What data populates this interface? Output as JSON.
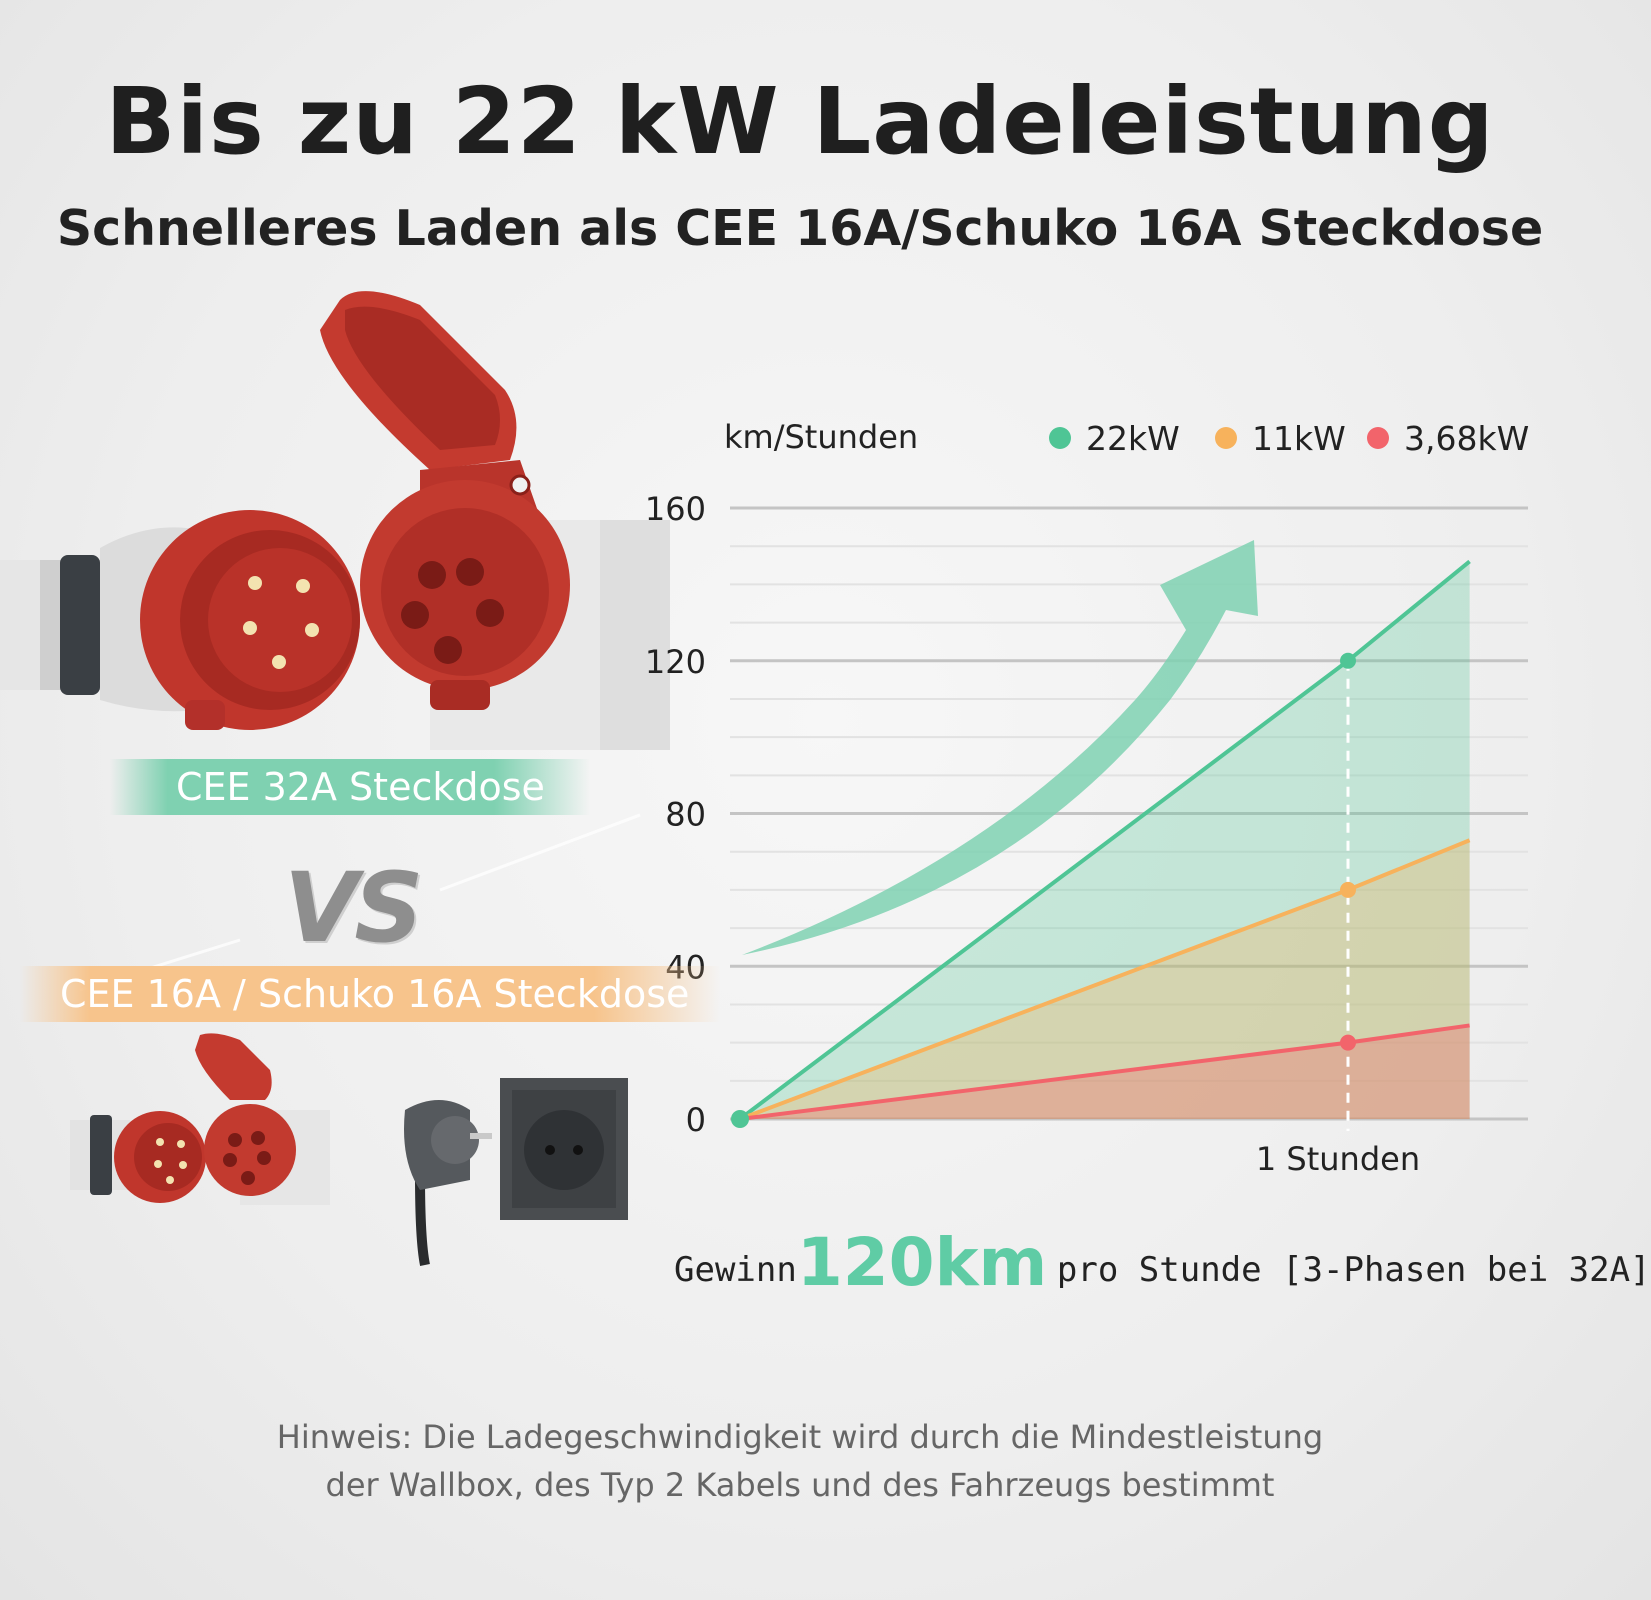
{
  "header": {
    "title": "Bis zu 22 kW Ladeleistung",
    "subtitle": "Schnelleres Laden als CEE 16A/Schuko 16A Steckdose"
  },
  "comparison": {
    "top_label": "CEE 32A Steckdose",
    "vs_label": "VS",
    "bottom_label": "CEE 16A / Schuko 16A Steckdose"
  },
  "chart_data": {
    "type": "line",
    "ylabel": "km/Stunden",
    "ylim": [
      0,
      160
    ],
    "yticks": [
      0,
      40,
      80,
      120,
      160
    ],
    "x": [
      0,
      1,
      1.2
    ],
    "xtick_label": "1 Stunden",
    "grid": true,
    "legend_position": "top-right",
    "series": [
      {
        "name": "22kW",
        "values": [
          0,
          120,
          146
        ],
        "color": "#4fc595"
      },
      {
        "name": "11kW",
        "values": [
          0,
          60,
          73
        ],
        "color": "#f7b25c"
      },
      {
        "name": "3,68kW",
        "values": [
          0,
          20,
          24.5
        ],
        "color": "#f2646b"
      }
    ]
  },
  "summary": {
    "prefix": "Gewinn",
    "highlight": "120km",
    "suffix": "pro Stunde [3-Phasen bei 32A]"
  },
  "note": {
    "line1": "Hinweis: Die Ladegeschwindigkeit wird durch die Mindestleistung",
    "line2": "der Wallbox, des Typ 2 Kabels und des Fahrzeugs bestimmt"
  }
}
